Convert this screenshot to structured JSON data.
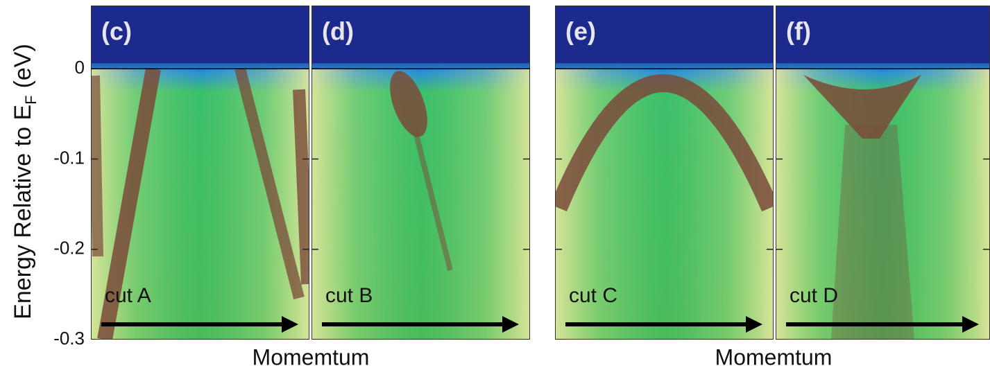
{
  "y_axis": {
    "label": "Energy Relative to E",
    "label_subscript": "F",
    "label_unit": "(eV)",
    "ylim": [
      -0.3,
      0.07
    ],
    "ticks": [
      0,
      -0.1,
      -0.2,
      -0.3
    ]
  },
  "groups": [
    {
      "x_label": "Momemtum",
      "panels": [
        {
          "label": "(c)",
          "cut": "cut A"
        },
        {
          "label": "(d)",
          "cut": "cut B"
        }
      ]
    },
    {
      "x_label": "Momemtum",
      "panels": [
        {
          "label": "(e)",
          "cut": "cut C"
        },
        {
          "label": "(f)",
          "cut": "cut D"
        }
      ]
    }
  ]
}
